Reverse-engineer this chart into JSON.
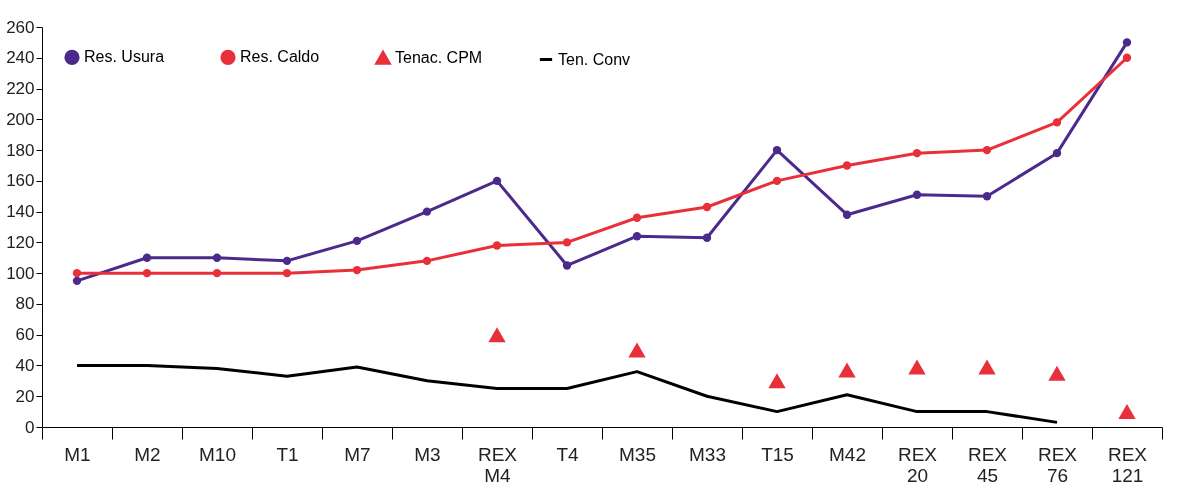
{
  "chart_data": {
    "type": "line",
    "categories": [
      "M1",
      "M2",
      "M10",
      "T1",
      "M7",
      "M3",
      "REX M4",
      "T4",
      "M35",
      "M33",
      "T15",
      "M42",
      "REX 20",
      "REX 45",
      "REX 76",
      "REX 121"
    ],
    "ylim": [
      0,
      260
    ],
    "yticks": [
      0,
      20,
      40,
      60,
      80,
      100,
      120,
      140,
      160,
      180,
      200,
      220,
      240,
      260
    ],
    "grid": false,
    "legend": "top left",
    "series": [
      {
        "name": "Res. Usura",
        "marker": "circle",
        "color": "#4b2a8c",
        "values": [
          95,
          110,
          110,
          108,
          121,
          140,
          160,
          105,
          124,
          123,
          180,
          138,
          151,
          150,
          178,
          250
        ]
      },
      {
        "name": "Res. Caldo",
        "marker": "circle",
        "color": "#e8303a",
        "values": [
          100,
          100,
          100,
          100,
          102,
          108,
          118,
          120,
          136,
          143,
          160,
          170,
          178,
          180,
          198,
          240
        ]
      },
      {
        "name": "Tenac. CPM",
        "type": "scatter",
        "marker": "triangle",
        "color": "#e8303a",
        "values": [
          null,
          null,
          null,
          null,
          null,
          null,
          60,
          null,
          50,
          null,
          30,
          37,
          39,
          39,
          35,
          10
        ]
      },
      {
        "name": "Ten. Conv",
        "marker": "none",
        "color": "#000000",
        "values": [
          40,
          40,
          38,
          33,
          39,
          30,
          25,
          25,
          36,
          20,
          10,
          21,
          10,
          10,
          3,
          null
        ]
      }
    ]
  }
}
